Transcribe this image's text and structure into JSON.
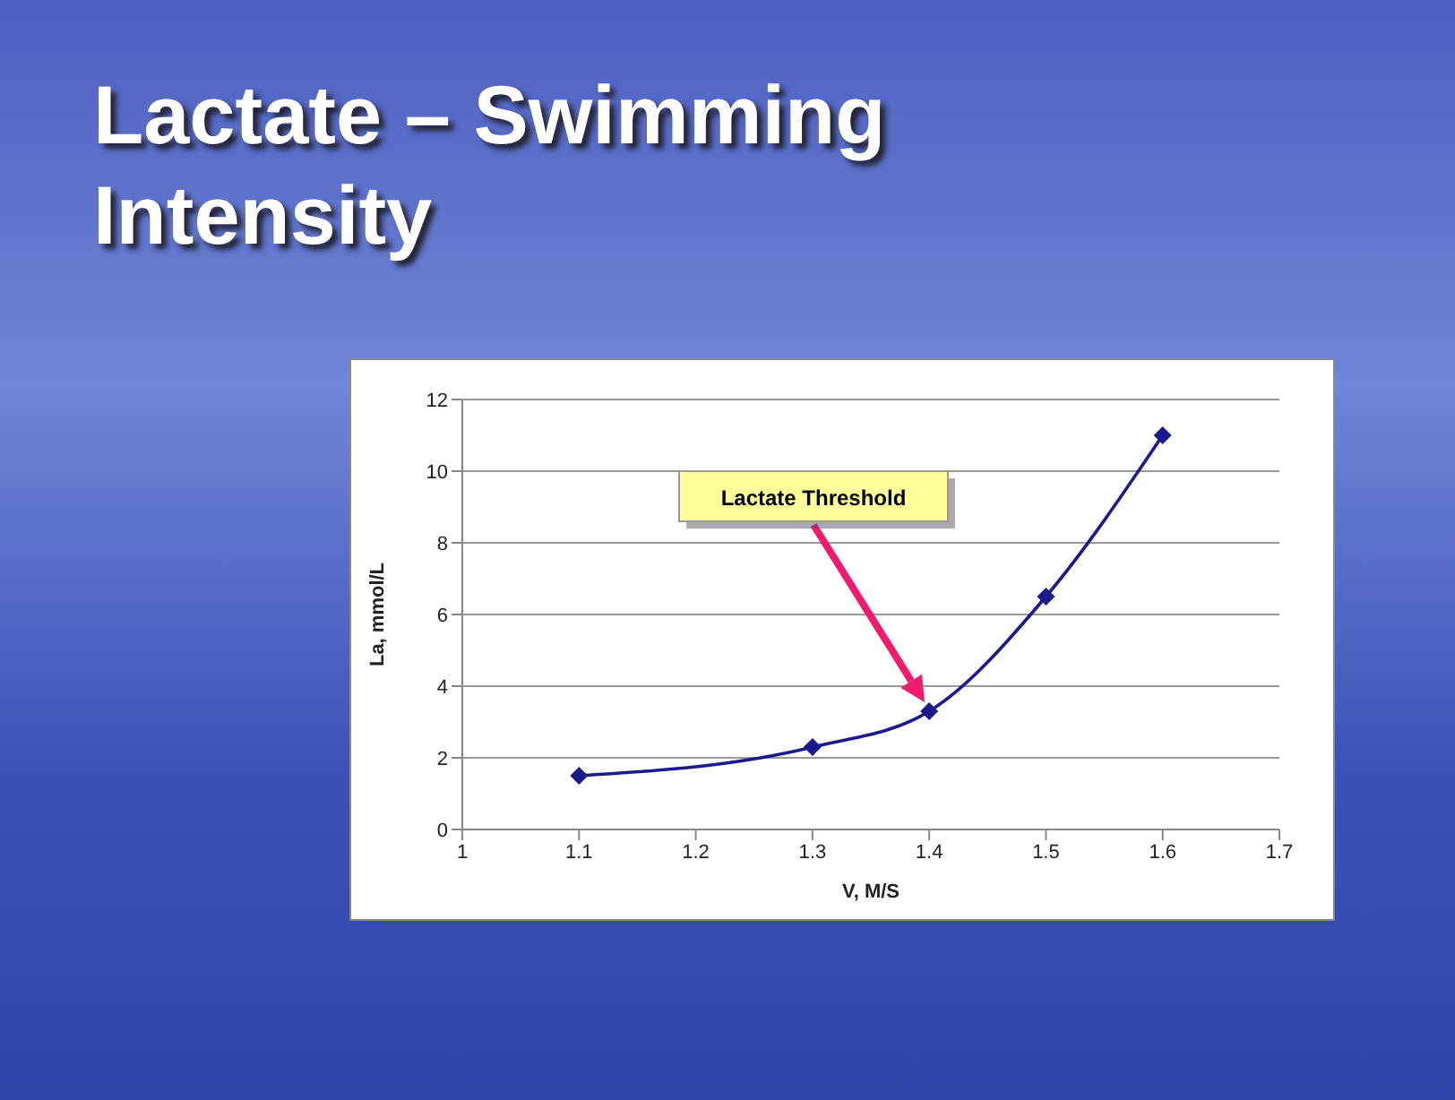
{
  "chart_data": {
    "type": "line",
    "title": "Lactate – Swimming Intensity",
    "xlabel": "V, M/S",
    "ylabel": "La, mmol/L",
    "x": [
      1.1,
      1.3,
      1.4,
      1.5,
      1.6
    ],
    "series": [
      {
        "color": "#1a1a8c",
        "values": [
          1.5,
          2.3,
          3.3,
          6.5,
          11
        ]
      }
    ],
    "xlim": [
      1,
      1.7
    ],
    "xticks": [
      1,
      1.1,
      1.2,
      1.3,
      1.4,
      1.5,
      1.6,
      1.7
    ],
    "ylim": [
      0,
      12
    ],
    "yticks": [
      0,
      2,
      4,
      6,
      8,
      10,
      12
    ],
    "grid": "y",
    "legend": false,
    "marker": "diamond",
    "line_style": "solid",
    "annotations": [
      "Lactate Threshold"
    ]
  }
}
